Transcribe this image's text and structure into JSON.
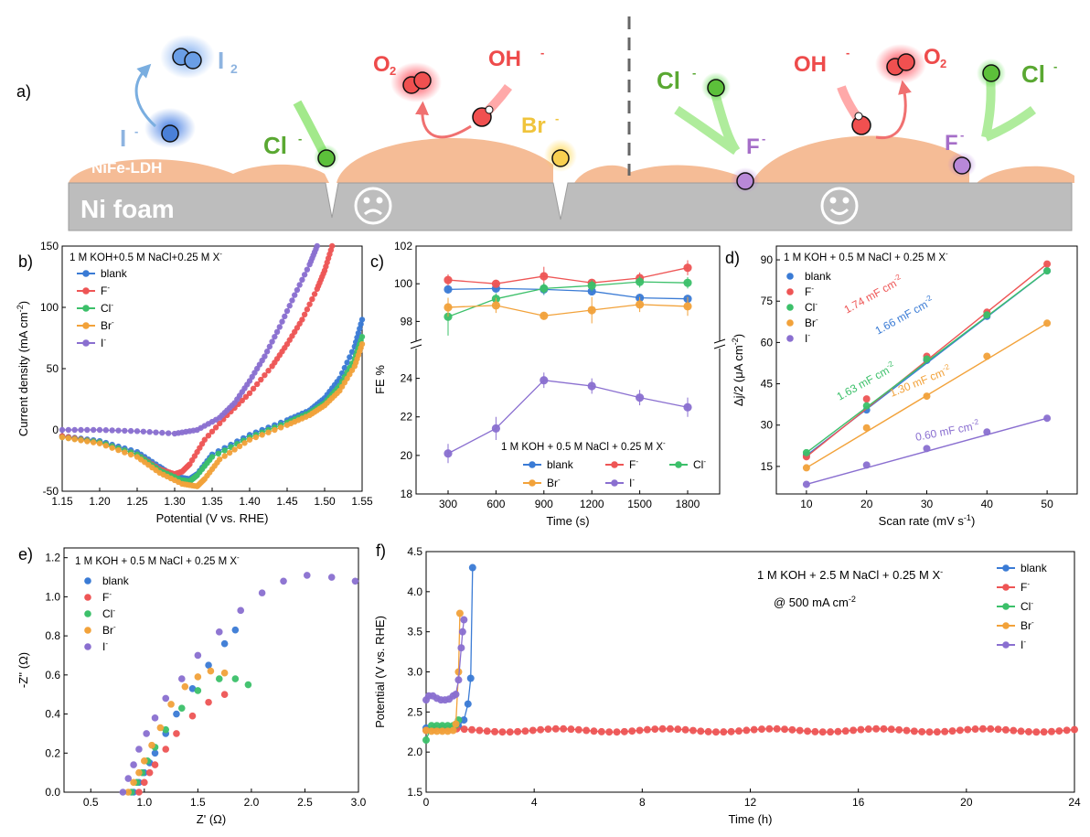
{
  "panel_a": {
    "label": "a)",
    "substrate": "Ni foam",
    "catalyst": "NiFe-LDH",
    "ions": {
      "I": "I",
      "I2": "I",
      "I2_sub": "2",
      "Cl": "Cl",
      "O2": "O",
      "O2_sub": "2",
      "OH": "OH",
      "Br": "Br",
      "F": "F",
      "minus": "-"
    },
    "colors": {
      "I": "#3f7ed8",
      "I2": "#8eb4e0",
      "Cl": "#5aa832",
      "O2": "#ee4b4b",
      "OH": "#ee4b4b",
      "Br": "#f0c43c",
      "F": "#a56ec8",
      "ldh": "#f5bc96",
      "foam": "#bdbdbd"
    }
  },
  "colors": {
    "blank": "#3a7bd5",
    "F": "#ee5555",
    "Cl": "#3cc06a",
    "Br": "#f2a23a",
    "I": "#8a6fd0"
  },
  "legend_names": {
    "blank": "blank",
    "F": "F",
    "Cl": "Cl",
    "Br": "Br",
    "I": "I",
    "sup": "-"
  },
  "chart_data": [
    {
      "panel": "b)",
      "type": "line",
      "condition": "1 M KOH+0.5 M NaCl+0.25 M X",
      "xlabel": "Potential (V vs. RHE)",
      "ylabel": "Current density (mA cm",
      "ylabel_sup": "-2",
      "ylabel_end": ")",
      "xlim": [
        1.15,
        1.55
      ],
      "ylim": [
        -50,
        150
      ],
      "xticks": [
        "1.15",
        "1.20",
        "1.25",
        "1.30",
        "1.35",
        "1.40",
        "1.45",
        "1.50",
        "1.55"
      ],
      "yticks": [
        "-50",
        "0",
        "50",
        "100",
        "150"
      ],
      "series": [
        {
          "name": "blank",
          "x": [
            1.15,
            1.2,
            1.25,
            1.28,
            1.3,
            1.32,
            1.33,
            1.35,
            1.4,
            1.45,
            1.48,
            1.5,
            1.52,
            1.54,
            1.55
          ],
          "y": [
            -5,
            -9,
            -18,
            -30,
            -38,
            -40,
            -36,
            -20,
            -4,
            8,
            16,
            26,
            42,
            68,
            90
          ]
        },
        {
          "name": "F",
          "x": [
            1.15,
            1.2,
            1.25,
            1.28,
            1.3,
            1.31,
            1.32,
            1.34,
            1.37,
            1.4,
            1.43,
            1.45,
            1.47,
            1.49,
            1.5,
            1.51
          ],
          "y": [
            -5,
            -10,
            -20,
            -32,
            -36,
            -34,
            -28,
            -8,
            12,
            30,
            52,
            70,
            90,
            115,
            130,
            150
          ]
        },
        {
          "name": "Cl",
          "x": [
            1.15,
            1.2,
            1.25,
            1.28,
            1.31,
            1.32,
            1.33,
            1.35,
            1.4,
            1.45,
            1.48,
            1.5,
            1.52,
            1.54,
            1.55
          ],
          "y": [
            -6,
            -10,
            -20,
            -33,
            -41,
            -42,
            -37,
            -22,
            -6,
            6,
            14,
            22,
            36,
            58,
            76
          ]
        },
        {
          "name": "Br",
          "x": [
            1.15,
            1.2,
            1.25,
            1.28,
            1.31,
            1.33,
            1.34,
            1.36,
            1.4,
            1.45,
            1.48,
            1.5,
            1.52,
            1.54,
            1.55
          ],
          "y": [
            -6,
            -11,
            -22,
            -35,
            -44,
            -46,
            -40,
            -24,
            -8,
            4,
            12,
            20,
            32,
            52,
            70
          ]
        },
        {
          "name": "I",
          "x": [
            1.15,
            1.2,
            1.25,
            1.3,
            1.33,
            1.36,
            1.38,
            1.4,
            1.42,
            1.44,
            1.46,
            1.48,
            1.49
          ],
          "y": [
            0,
            0,
            -1,
            -3,
            0,
            10,
            22,
            40,
            60,
            84,
            110,
            135,
            150
          ]
        }
      ]
    },
    {
      "panel": "c)",
      "type": "line",
      "condition": "1 M KOH + 0.5 M NaCl + 0.25 M X",
      "xlabel": "Time (s)",
      "ylabel": "FE %",
      "x": [
        300,
        600,
        900,
        1200,
        1500,
        1800
      ],
      "xticks": [
        "300",
        "600",
        "900",
        "1200",
        "1500",
        "1800"
      ],
      "yticks_top": [
        "98",
        "100",
        "102"
      ],
      "yticks_bottom": [
        "18",
        "20",
        "22",
        "24"
      ],
      "series": [
        {
          "name": "blank",
          "values": [
            99.7,
            99.75,
            99.7,
            99.6,
            99.25,
            99.2
          ]
        },
        {
          "name": "F",
          "values": [
            100.2,
            100.0,
            100.4,
            100.05,
            100.3,
            100.85
          ]
        },
        {
          "name": "Cl",
          "values": [
            98.25,
            99.2,
            99.75,
            99.9,
            100.1,
            100.05
          ]
        },
        {
          "name": "Br",
          "values": [
            98.75,
            98.85,
            98.3,
            98.6,
            98.9,
            98.8
          ]
        },
        {
          "name": "I",
          "values": [
            20.1,
            21.4,
            23.9,
            23.6,
            23.0,
            22.5
          ]
        }
      ]
    },
    {
      "panel": "d)",
      "type": "scatter",
      "condition": "1 M KOH + 0.5 M NaCl + 0.25 M X",
      "xlabel": "Scan rate (mV s",
      "xlabel_sup": "-1",
      "xlabel_end": ")",
      "ylabel": "Δj/2 (μA cm",
      "ylabel_sup": "-2",
      "ylabel_end": ")",
      "xlim": [
        5,
        55
      ],
      "ylim": [
        5,
        95
      ],
      "x": [
        10,
        20,
        30,
        40,
        50
      ],
      "xticks": [
        "10",
        "20",
        "30",
        "40",
        "50"
      ],
      "yticks": [
        "15",
        "30",
        "45",
        "60",
        "75",
        "90"
      ],
      "series": [
        {
          "name": "blank",
          "values": [
            19,
            35.5,
            53.5,
            69.5,
            86
          ],
          "slope_label": "1.66 mF cm"
        },
        {
          "name": "F",
          "values": [
            18.5,
            39.5,
            55,
            71,
            88.5
          ],
          "slope_label": "1.74 mF cm"
        },
        {
          "name": "Cl",
          "values": [
            20,
            37,
            54,
            70,
            86
          ],
          "slope_label": "1.63 mF cm"
        },
        {
          "name": "Br",
          "values": [
            14.5,
            29,
            40.5,
            55,
            67
          ],
          "slope_label": "1.30 mF cm"
        },
        {
          "name": "I",
          "values": [
            8.5,
            15.5,
            21.5,
            27.5,
            32.5
          ],
          "slope_label": "0.60 mF cm"
        }
      ]
    },
    {
      "panel": "e)",
      "type": "scatter",
      "condition": "1 M KOH + 0.5 M NaCl + 0.25 M X",
      "xlabel": "Z' (Ω)",
      "ylabel": "-Z'' (Ω)",
      "xlim": [
        0.25,
        3.0
      ],
      "ylim": [
        0,
        1.25
      ],
      "xticks": [
        "0.5",
        "1.0",
        "1.5",
        "2.0",
        "2.5",
        "3.0"
      ],
      "yticks": [
        "0.0",
        "0.2",
        "0.4",
        "0.6",
        "0.8",
        "1.0",
        "1.2"
      ],
      "series": [
        {
          "name": "blank",
          "x": [
            0.9,
            0.95,
            1.0,
            1.05,
            1.1,
            1.2,
            1.3,
            1.45,
            1.6,
            1.75,
            1.85
          ],
          "y": [
            0.0,
            0.05,
            0.1,
            0.15,
            0.2,
            0.3,
            0.4,
            0.53,
            0.65,
            0.76,
            0.83
          ]
        },
        {
          "name": "F",
          "x": [
            0.95,
            1.0,
            1.05,
            1.1,
            1.2,
            1.3,
            1.45,
            1.6,
            1.75
          ],
          "y": [
            0.0,
            0.05,
            0.1,
            0.14,
            0.22,
            0.3,
            0.39,
            0.46,
            0.5
          ]
        },
        {
          "name": "Cl",
          "x": [
            0.88,
            0.93,
            0.98,
            1.03,
            1.1,
            1.2,
            1.35,
            1.5,
            1.7,
            1.85,
            1.97
          ],
          "y": [
            0.0,
            0.05,
            0.1,
            0.16,
            0.23,
            0.32,
            0.43,
            0.52,
            0.58,
            0.58,
            0.55
          ]
        },
        {
          "name": "Br",
          "x": [
            0.85,
            0.9,
            0.95,
            1.0,
            1.07,
            1.15,
            1.25,
            1.38,
            1.5,
            1.62,
            1.75
          ],
          "y": [
            0.0,
            0.05,
            0.1,
            0.16,
            0.24,
            0.33,
            0.45,
            0.54,
            0.59,
            0.62,
            0.61
          ]
        },
        {
          "name": "I",
          "x": [
            0.8,
            0.85,
            0.9,
            0.95,
            1.02,
            1.1,
            1.2,
            1.35,
            1.5,
            1.7,
            1.9,
            2.1,
            2.3,
            2.52,
            2.75,
            2.97
          ],
          "y": [
            0.0,
            0.07,
            0.14,
            0.22,
            0.3,
            0.38,
            0.48,
            0.58,
            0.7,
            0.82,
            0.93,
            1.02,
            1.08,
            1.11,
            1.1,
            1.08
          ]
        }
      ]
    },
    {
      "panel": "f)",
      "type": "line",
      "condition": "1 M KOH + 2.5 M NaCl + 0.25 M X",
      "condition2": "@ 500 mA cm",
      "xlabel": "Time (h)",
      "ylabel": "Potential (V vs. RHE)",
      "xlim": [
        0,
        24
      ],
      "ylim": [
        1.5,
        4.5
      ],
      "xticks": [
        "0",
        "4",
        "8",
        "12",
        "16",
        "20",
        "24"
      ],
      "yticks": [
        "1.5",
        "2.0",
        "2.5",
        "3.0",
        "3.5",
        "4.0",
        "4.5"
      ],
      "series": [
        {
          "name": "blank",
          "x": [
            0,
            0.3,
            0.6,
            0.9,
            1.2,
            1.4,
            1.55,
            1.65,
            1.72
          ],
          "y": [
            2.3,
            2.3,
            2.3,
            2.3,
            2.32,
            2.4,
            2.6,
            2.92,
            4.3
          ]
        },
        {
          "name": "F",
          "x_start": 0,
          "x_end": 24,
          "y_const": 2.27,
          "points": 85
        },
        {
          "name": "Cl",
          "x": [
            0,
            0.2,
            0.4,
            0.6,
            0.8,
            1.0,
            1.1,
            1.2
          ],
          "y": [
            2.15,
            2.33,
            2.33,
            2.33,
            2.33,
            2.33,
            2.34,
            2.4
          ]
        },
        {
          "name": "Br",
          "x": [
            0,
            0.2,
            0.4,
            0.6,
            0.8,
            1.0,
            1.1,
            1.2,
            1.25
          ],
          "y": [
            2.27,
            2.26,
            2.26,
            2.26,
            2.26,
            2.27,
            2.35,
            3.0,
            3.73
          ]
        },
        {
          "name": "I",
          "x": [
            0,
            0.1,
            0.25,
            0.4,
            0.55,
            0.7,
            0.85,
            1.0,
            1.1,
            1.2,
            1.3,
            1.35,
            1.4
          ],
          "y": [
            2.65,
            2.7,
            2.7,
            2.67,
            2.65,
            2.65,
            2.66,
            2.7,
            2.72,
            2.9,
            3.3,
            3.5,
            3.65
          ]
        }
      ]
    }
  ]
}
